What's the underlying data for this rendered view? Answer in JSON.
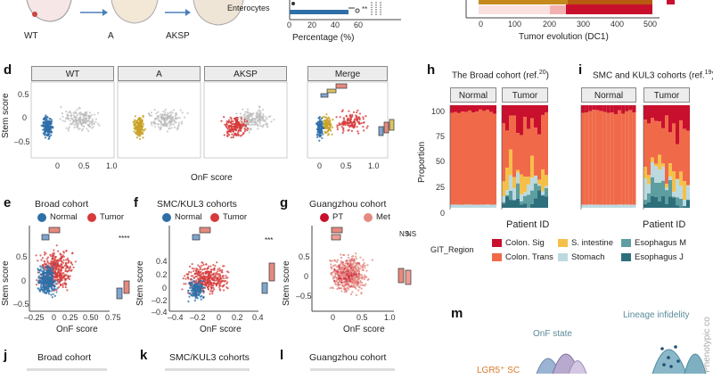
{
  "panels": {
    "top": {
      "wt_label": "WT",
      "a_label": "A",
      "aksp_label": "AKSP",
      "enterocytes_label": "Enterocytes",
      "percentage_label": "Percentage (%)",
      "pct_ticks": [
        "0",
        "20",
        "40",
        "60"
      ],
      "tumor_evolution_label": "Tumor evolution (DC1)",
      "dc1_ticks": [
        "0",
        "100",
        "200",
        "300",
        "400",
        "500"
      ]
    },
    "d": {
      "letter": "d",
      "strips": [
        "WT",
        "A",
        "AKSP",
        "Merge"
      ],
      "ylabel": "Stem score",
      "xlabel": "OnF score",
      "yticks": [
        "0.5",
        "0",
        "–0.5"
      ],
      "xticks": [
        "0",
        "0.5",
        "1.0"
      ]
    },
    "e": {
      "letter": "e",
      "title": "Broad cohort",
      "legend": [
        "Normal",
        "Tumor"
      ],
      "ylabel": "Stem score",
      "xlabel": "OnF score",
      "yticks": [
        "0.5",
        "0",
        "–0.5"
      ],
      "xticks": [
        "–0.25",
        "0",
        "0.25",
        "0.50",
        "0.75"
      ],
      "sig": "****"
    },
    "f": {
      "letter": "f",
      "title": "SMC/KUL3 cohorts",
      "legend": [
        "Normal",
        "Tumor"
      ],
      "ylabel": "Stem score",
      "xlabel": "OnF score",
      "yticks": [
        "0.4",
        "0.2",
        "0",
        "–0.2",
        "–0.4"
      ],
      "xticks": [
        "–0.4",
        "–0.2",
        "0",
        "0.2",
        "0.4"
      ],
      "sig": "***"
    },
    "g": {
      "letter": "g",
      "title": "Guangzhou cohort",
      "legend": [
        "PT",
        "Met"
      ],
      "ylabel": "Stem score",
      "xlabel": "OnF score",
      "yticks": [
        "0.5",
        "0",
        "–0.5"
      ],
      "xticks": [
        "0",
        "0.5",
        "1.0"
      ],
      "sig": [
        "NS",
        "NS"
      ]
    },
    "h": {
      "letter": "h",
      "title": "The Broad cohort (ref.",
      "ref": "20",
      "strips": [
        "Normal",
        "Tumor"
      ],
      "ylabel": "Proportion",
      "xlabel": "Patient ID",
      "yticks": [
        "100",
        "75",
        "50",
        "25",
        "0"
      ]
    },
    "i": {
      "letter": "i",
      "title": "SMC and KUL3 cohorts (ref.",
      "ref": "19",
      "strips": [
        "Normal",
        "Tumor"
      ],
      "xlabel": "Patient ID"
    },
    "legend": {
      "title": "GIT_Region",
      "items": [
        {
          "label": "Colon. Sig",
          "color": "#c8102e"
        },
        {
          "label": "Colon. Trans",
          "color": "#f06a4a"
        },
        {
          "label": "S. intestine",
          "color": "#f5c04a"
        },
        {
          "label": "Stomach",
          "color": "#bcd9e0"
        },
        {
          "label": "Esophagus M",
          "color": "#5e9ea0"
        },
        {
          "label": "Esophagus J",
          "color": "#2e6f7c"
        }
      ]
    },
    "bottom": {
      "j": "j",
      "j_title": "Broad cohort",
      "k": "k",
      "k_title": "SMC/KUL3 cohorts",
      "l": "l",
      "l_title": "Guangzhou cohort",
      "m": "m",
      "onf_state": "OnF state",
      "lineage_infidelity": "Lineage infidelity",
      "phenotypic": "Phenotypic co",
      "lgr5": "LGR5⁺ SC"
    }
  },
  "colors": {
    "normal": "#2e6fa8",
    "tumor": "#d63a3a",
    "gray": "#b9b9b9",
    "gold": "#c9a227",
    "pt": "#c8102e",
    "met": "#e58a80"
  }
}
